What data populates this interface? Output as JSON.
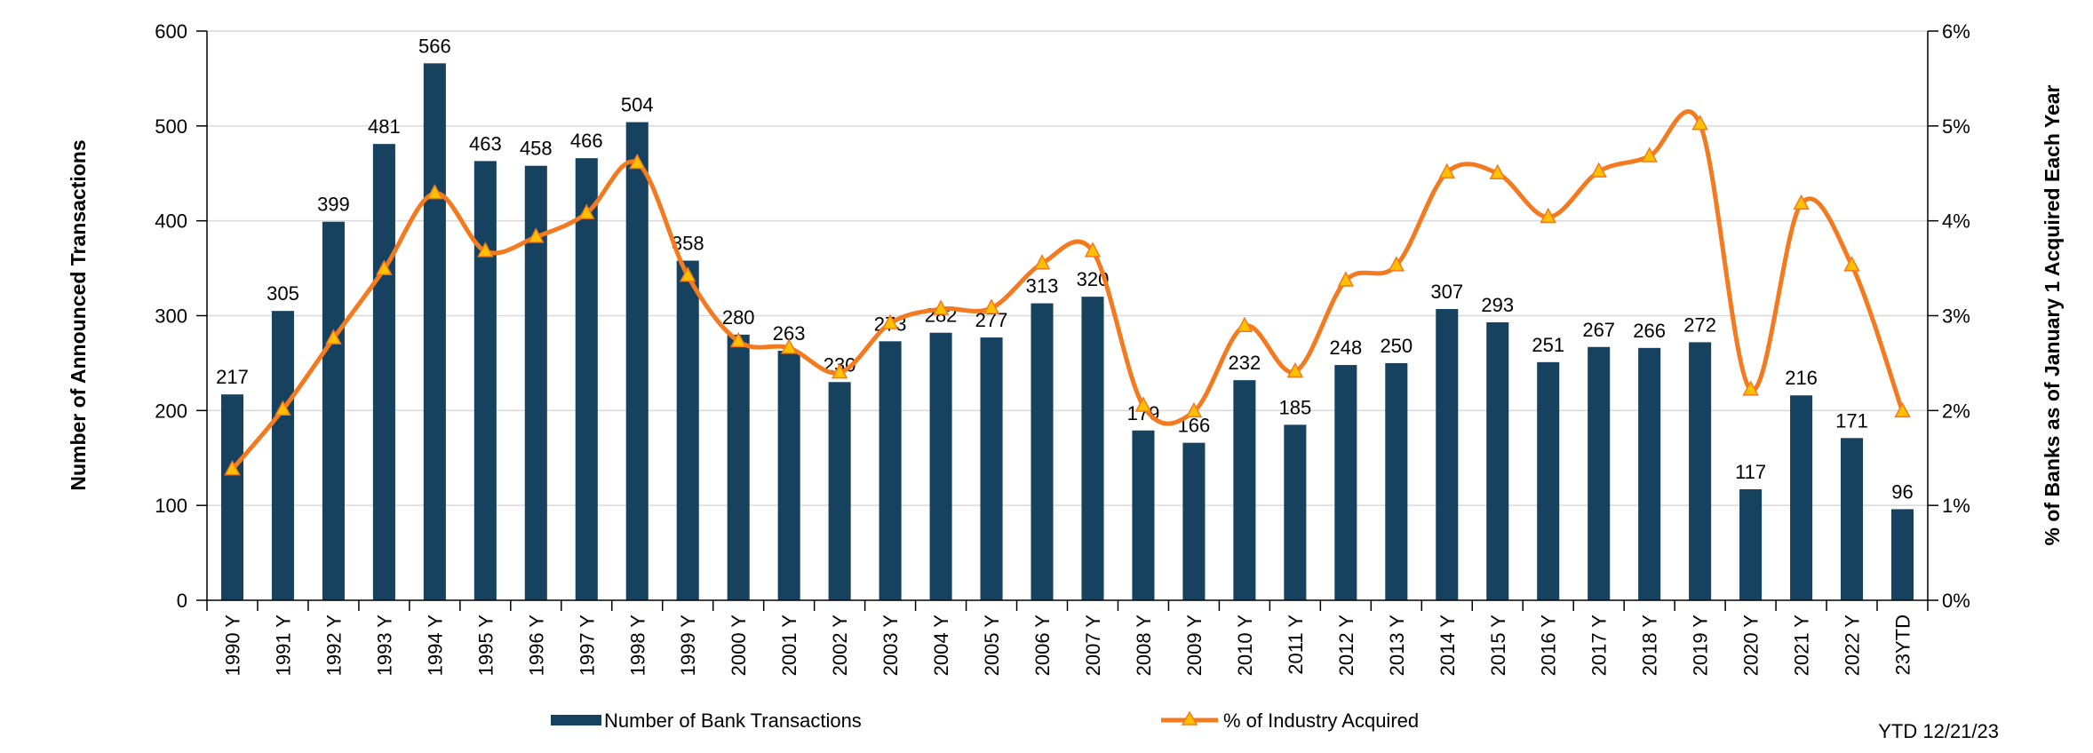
{
  "chart_data": {
    "type": "bar",
    "categories": [
      "1990 Y",
      "1991 Y",
      "1992 Y",
      "1993 Y",
      "1994 Y",
      "1995 Y",
      "1996 Y",
      "1997 Y",
      "1998 Y",
      "1999 Y",
      "2000 Y",
      "2001 Y",
      "2002 Y",
      "2003 Y",
      "2004 Y",
      "2005 Y",
      "2006 Y",
      "2007 Y",
      "2008 Y",
      "2009 Y",
      "2010 Y",
      "2011 Y",
      "2012 Y",
      "2013 Y",
      "2014 Y",
      "2015 Y",
      "2016 Y",
      "2017 Y",
      "2018 Y",
      "2019 Y",
      "2020 Y",
      "2021 Y",
      "2022 Y",
      "23YTD"
    ],
    "series": [
      {
        "name": "Number of Bank Transactions",
        "type": "bar",
        "axis": "left",
        "color": "#17425F",
        "values": [
          217,
          305,
          399,
          481,
          566,
          463,
          458,
          466,
          504,
          358,
          280,
          263,
          230,
          273,
          282,
          277,
          313,
          320,
          179,
          166,
          232,
          185,
          248,
          250,
          307,
          293,
          251,
          267,
          266,
          272,
          117,
          216,
          171,
          96
        ]
      },
      {
        "name": "% of Industry Acquired",
        "type": "line",
        "axis": "right",
        "color": "#F47A20",
        "marker_color": "#FFC000",
        "values": [
          1.38,
          2.01,
          2.76,
          3.49,
          4.29,
          3.68,
          3.83,
          4.08,
          4.61,
          3.42,
          2.73,
          2.66,
          2.4,
          2.92,
          3.07,
          3.08,
          3.55,
          3.68,
          2.05,
          1.99,
          2.89,
          2.41,
          3.37,
          3.53,
          4.51,
          4.5,
          4.04,
          4.52,
          4.68,
          5.02,
          2.22,
          4.18,
          3.53,
          1.99
        ]
      }
    ],
    "y_left": {
      "label": "Number of Announced Transactions",
      "ylim": [
        0,
        600
      ],
      "ticks": [
        0,
        100,
        200,
        300,
        400,
        500,
        600
      ]
    },
    "y_right": {
      "label": "% of Banks as of January 1 Acquired Each Year",
      "ylim": [
        0,
        6
      ],
      "ticks": [
        "0%",
        "1%",
        "2%",
        "3%",
        "4%",
        "5%",
        "6%"
      ]
    },
    "grid": true,
    "legend": "bottom",
    "annotation": "YTD 12/21/23"
  }
}
